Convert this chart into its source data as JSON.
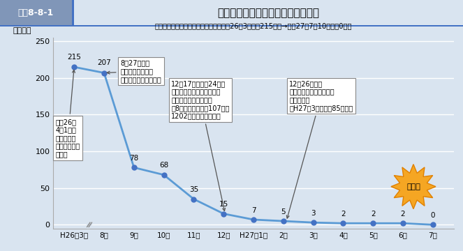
{
  "title_label": "図表8-8-1",
  "title_main": "危険ドラッグ販売店舗等の取締状況",
  "subtitle": "【危険ドラッグ販売店舗数の推移】平成26年3月時点215店舗→平成27年7月10日時点0店舗",
  "ylabel": "（店舗）",
  "x_labels": [
    "H26年3月",
    "8月",
    "9月",
    "10月",
    "11月",
    "12月",
    "H27年1月",
    "2月",
    "3月",
    "4月",
    "5月",
    "6月",
    "7月"
  ],
  "x_positions": [
    0,
    1,
    2,
    3,
    4,
    5,
    6,
    7,
    8,
    9,
    10,
    11,
    12
  ],
  "y_values": [
    215,
    207,
    78,
    68,
    35,
    15,
    7,
    5,
    3,
    2,
    2,
    2,
    0
  ],
  "line_color": "#5B9BD5",
  "marker_color": "#4472C4",
  "bg_color": "#D9E4F0",
  "header_gray_bg": "#BFBFBF",
  "header_white_bg": "#FFFFFF",
  "header_bar_color": "#4472C4",
  "ylim_max": 250,
  "yticks": [
    0,
    50,
    100,
    150,
    200,
    250
  ],
  "ann1_text": "8月27日〜：\n初めて検査命令・\n販売等停止命令を実施",
  "ann2_text": "12月17日〜２月24日：\n改正法に基づく検査命令・\n販売等停止命令を実施\n（8月からの累計で107店舗\n1202製品に検査命令）",
  "ann3_text": "12月26日〜：\n改正法に基づく命令対象\n物品の告示\n（H27年3月末：計85物品）",
  "ann4_text": "平成26年\n4月1日：\n指定薬物の\n所持・使用等\nに罰則",
  "burst_text": "壊滅！",
  "burst_color": "#F5A623",
  "burst_edge_color": "#E08000",
  "data_labels": [
    215,
    207,
    78,
    68,
    35,
    15,
    7,
    5,
    3,
    2,
    2,
    2,
    0
  ]
}
